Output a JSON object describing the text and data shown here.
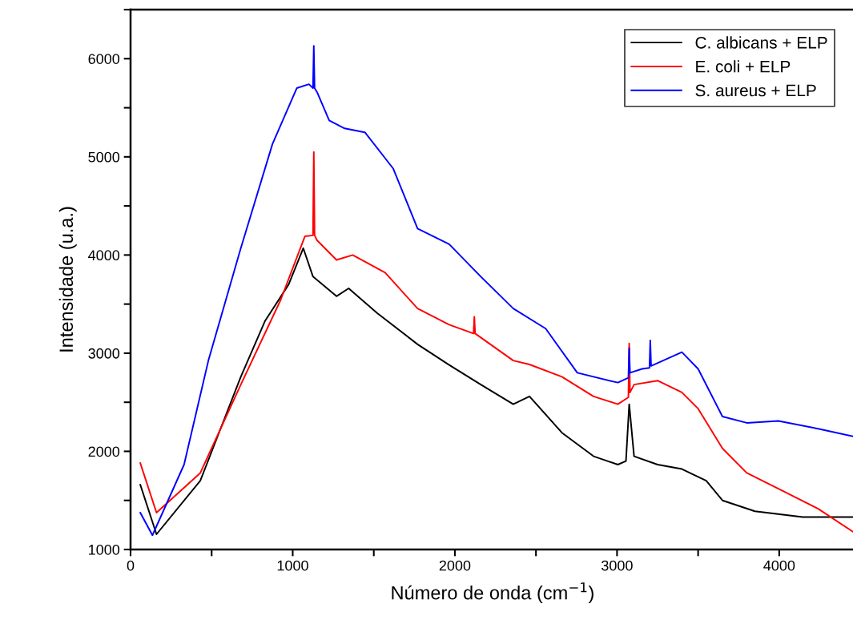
{
  "chart_data": {
    "type": "line",
    "xlabel": "Número de onda (cm$^{−1}$)",
    "ylabel": "Intensidade (u.a.)",
    "xlim": [
      0,
      4465
    ],
    "ylim": [
      1000,
      6500
    ],
    "xticks": [
      0,
      {
        "value": 500,
        "label": null
      },
      1000,
      {
        "value": 1500,
        "label": null
      },
      2000,
      {
        "value": 2500,
        "label": null
      },
      3000,
      {
        "value": 3500,
        "label": null
      },
      4000
    ],
    "yticks": [
      1000,
      {
        "value": 1500,
        "label": null
      },
      2000,
      {
        "value": 2500,
        "label": null
      },
      3000,
      {
        "value": 3500,
        "label": null
      },
      4000,
      {
        "value": 4500,
        "label": null
      },
      5000,
      {
        "value": 5500,
        "label": null
      },
      6000,
      {
        "value": 6500,
        "label": null
      }
    ],
    "legend": "top right",
    "grid": false,
    "marker": "none",
    "line_style": "solid",
    "series": [
      {
        "name": "C. albicans + ELP",
        "color": "#000000",
        "x": [
          60,
          160,
          430,
          680,
          830,
          975,
          1065,
          1125,
          1270,
          1345,
          1520,
          1770,
          1965,
          2160,
          2360,
          2460,
          2660,
          2855,
          3005,
          3055,
          3075,
          3105,
          3250,
          3400,
          3550,
          3650,
          3850,
          4145,
          4465
        ],
        "values": [
          1660,
          1155,
          1700,
          2760,
          3330,
          3700,
          4070,
          3780,
          3580,
          3660,
          3410,
          3090,
          2880,
          2680,
          2480,
          2560,
          2190,
          1950,
          1865,
          1900,
          2480,
          1950,
          1865,
          1820,
          1700,
          1500,
          1390,
          1330,
          1330
        ]
      },
      {
        "name": "E. coli + ELP",
        "color": "#ff0000",
        "x": [
          60,
          160,
          430,
          680,
          925,
          1075,
          1125,
          1130,
          1135,
          1150,
          1270,
          1370,
          1570,
          1770,
          1965,
          2115,
          2120,
          2125,
          2360,
          2460,
          2660,
          2855,
          3005,
          3070,
          3075,
          3080,
          3105,
          3250,
          3400,
          3500,
          3650,
          3800,
          3995,
          4240,
          4465
        ],
        "values": [
          1880,
          1375,
          1780,
          2680,
          3540,
          4190,
          4200,
          5050,
          4200,
          4150,
          3950,
          4000,
          3820,
          3455,
          3290,
          3200,
          3370,
          3200,
          2925,
          2885,
          2760,
          2560,
          2480,
          2550,
          3100,
          2600,
          2680,
          2720,
          2600,
          2435,
          2030,
          1780,
          1620,
          1415,
          1170
        ]
      },
      {
        "name": "S. aureus + ELP",
        "color": "#0000ff",
        "x": [
          60,
          135,
          330,
          480,
          680,
          875,
          1025,
          1100,
          1125,
          1130,
          1135,
          1150,
          1225,
          1320,
          1445,
          1620,
          1770,
          1965,
          2160,
          2360,
          2560,
          2755,
          3005,
          3070,
          3075,
          3080,
          3155,
          3200,
          3205,
          3210,
          3400,
          3500,
          3650,
          3800,
          3995,
          4240,
          4465
        ],
        "values": [
          1375,
          1145,
          1865,
          2925,
          4070,
          5130,
          5700,
          5740,
          5700,
          6130,
          5700,
          5660,
          5370,
          5290,
          5250,
          4880,
          4270,
          4110,
          3780,
          3455,
          3250,
          2800,
          2700,
          2750,
          3050,
          2800,
          2840,
          2850,
          3130,
          2870,
          3010,
          2840,
          2355,
          2290,
          2310,
          2230,
          2150
        ]
      }
    ]
  }
}
